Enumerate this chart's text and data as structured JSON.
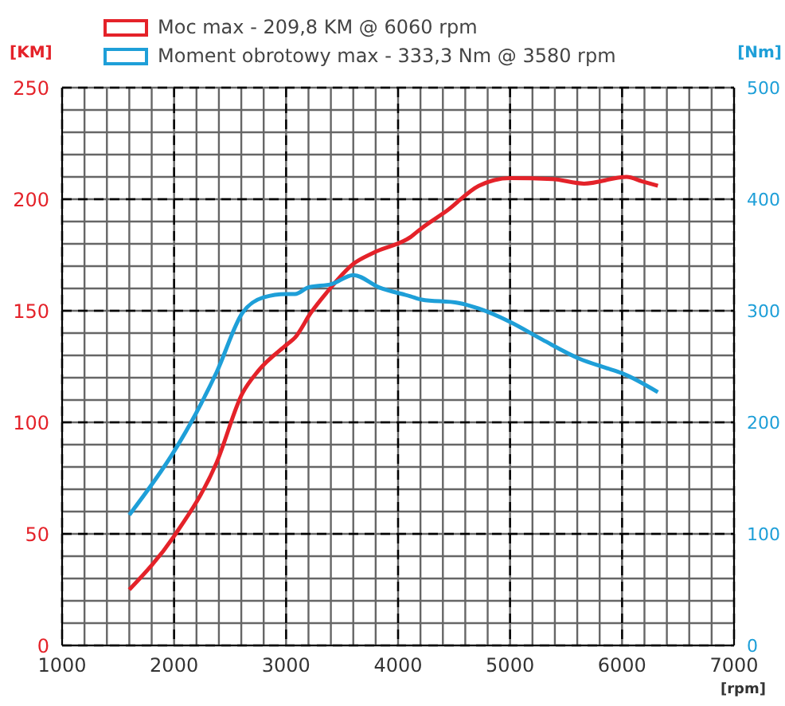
{
  "chart_data": {
    "type": "line",
    "xlabel": "[rpm]",
    "ylabel": "[KM]",
    "y2label": "[Nm]",
    "xlim": [
      1000,
      7000
    ],
    "xticks": [
      1000,
      {
        "value": 1200,
        "label": null
      },
      {
        "value": 1400,
        "label": null
      },
      {
        "value": 1600,
        "label": null
      },
      {
        "value": 1800,
        "label": null
      },
      2000,
      {
        "value": 2200,
        "label": null
      },
      {
        "value": 2400,
        "label": null
      },
      {
        "value": 2600,
        "label": null
      },
      {
        "value": 2800,
        "label": null
      },
      3000,
      {
        "value": 3200,
        "label": null
      },
      {
        "value": 3400,
        "label": null
      },
      {
        "value": 3600,
        "label": null
      },
      {
        "value": 3800,
        "label": null
      },
      4000,
      {
        "value": 4200,
        "label": null
      },
      {
        "value": 4400,
        "label": null
      },
      {
        "value": 4600,
        "label": null
      },
      {
        "value": 4800,
        "label": null
      },
      5000,
      {
        "value": 5200,
        "label": null
      },
      {
        "value": 5400,
        "label": null
      },
      {
        "value": 5600,
        "label": null
      },
      {
        "value": 5800,
        "label": null
      },
      6000,
      {
        "value": 6200,
        "label": null
      },
      {
        "value": 6400,
        "label": null
      },
      {
        "value": 6600,
        "label": null
      },
      {
        "value": 6800,
        "label": null
      },
      7000
    ],
    "ylim": [
      0,
      250
    ],
    "yticks": [
      0,
      {
        "value": 10,
        "label": null
      },
      {
        "value": 20,
        "label": null
      },
      {
        "value": 30,
        "label": null
      },
      {
        "value": 40,
        "label": null
      },
      50,
      {
        "value": 60,
        "label": null
      },
      {
        "value": 70,
        "label": null
      },
      {
        "value": 80,
        "label": null
      },
      {
        "value": 90,
        "label": null
      },
      100,
      {
        "value": 110,
        "label": null
      },
      {
        "value": 120,
        "label": null
      },
      {
        "value": 130,
        "label": null
      },
      {
        "value": 140,
        "label": null
      },
      150,
      {
        "value": 160,
        "label": null
      },
      {
        "value": 170,
        "label": null
      },
      {
        "value": 180,
        "label": null
      },
      {
        "value": 190,
        "label": null
      },
      200,
      {
        "value": 210,
        "label": null
      },
      {
        "value": 220,
        "label": null
      },
      {
        "value": 230,
        "label": null
      },
      {
        "value": 240,
        "label": null
      },
      250
    ],
    "y2lim": [
      0,
      500
    ],
    "y2ticks": [
      0,
      100,
      200,
      300,
      400,
      500
    ],
    "grid": true,
    "legend": "top left",
    "marker": "none",
    "line_style": "solid",
    "series": [
      {
        "name": "Moc max - 209,8 KM @ 6060 rpm",
        "color": "#e42229",
        "x": [
          1600,
          2000,
          2380,
          2610,
          2750,
          3010,
          3080,
          3220,
          3360,
          3600,
          3780,
          4110,
          4210,
          4440,
          4720,
          5000,
          5380,
          5660,
          6040,
          6180,
          6320
        ],
        "values": [
          25,
          49,
          82,
          113,
          123,
          135,
          138,
          149,
          158,
          171,
          176,
          183,
          187,
          195,
          206,
          209.5,
          209,
          207,
          210,
          208,
          206
        ]
      },
      {
        "name": "Moment obrotowy max - 333,3 Nm @ 3580 rpm",
        "color": "#1e9fd8",
        "axis": "y2",
        "x": [
          1600,
          2000,
          2190,
          2380,
          2610,
          2800,
          3000,
          3080,
          3200,
          3410,
          3600,
          3830,
          4110,
          4210,
          4540,
          4720,
          5000,
          5290,
          5620,
          5850,
          6000,
          6320
        ],
        "values": [
          117,
          174,
          207,
          245,
          298,
          312,
          315,
          315,
          321,
          324,
          332,
          321,
          313,
          310,
          307,
          302,
          290,
          274,
          257,
          249,
          244,
          227
        ]
      }
    ]
  }
}
